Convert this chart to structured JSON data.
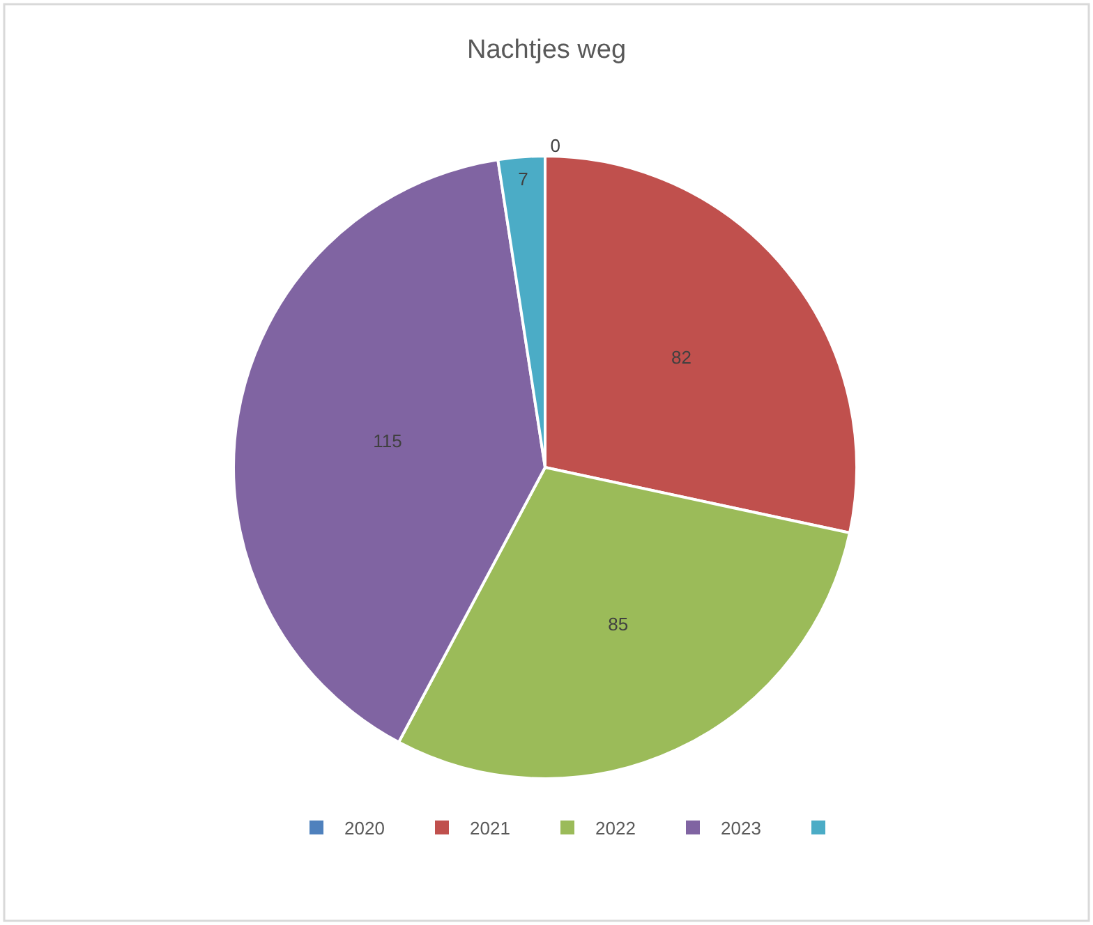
{
  "chart_data": {
    "type": "pie",
    "title": "Nachtjes weg",
    "categories": [
      "2020",
      "2021",
      "2022",
      "2023",
      null
    ],
    "values": [
      0,
      82,
      85,
      115,
      7
    ],
    "value_labels": [
      "0",
      "82",
      "85",
      "115",
      "7"
    ],
    "colors": [
      "#4f81bd",
      "#c0504d",
      "#9bbb59",
      "#8064a2",
      "#4bacc6"
    ],
    "legend": "bottom"
  }
}
